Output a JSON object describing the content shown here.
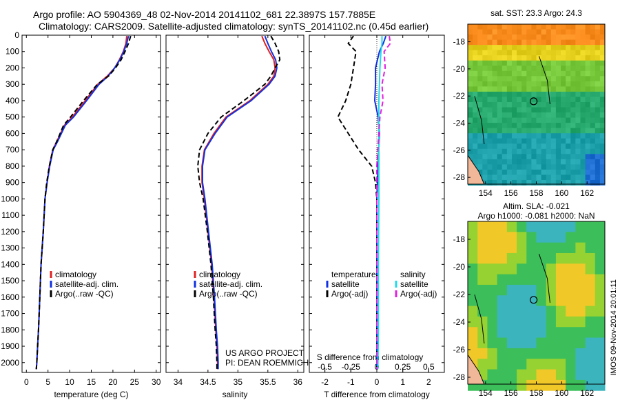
{
  "header": {
    "line1": "Argo profile: AO 5904369_48 02-Nov-2014 20141102_681 22.3897S 157.7885E",
    "line2": "Climatology: CARS2009. Satellite-adjusted climatology: synTS_20141102.nc (0.45d earlier)"
  },
  "colors": {
    "clim": "#e02020",
    "sat": "#1030e0",
    "argo": "#000000",
    "cyan": "#20d8e8",
    "magenta": "#e020e0"
  },
  "chart_data": [
    {
      "type": "line",
      "id": "temperature",
      "xlabel": "temperature (deg C)",
      "xlim": [
        -1,
        31
      ],
      "xticks": [
        "0",
        "5",
        "10",
        "15",
        "20",
        "25",
        "30"
      ],
      "xtick_values": [
        0,
        5,
        10,
        15,
        20,
        25,
        30
      ],
      "ylim": [
        0,
        2060
      ],
      "yticks": [
        "0",
        "100",
        "200",
        "300",
        "400",
        "500",
        "600",
        "700",
        "800",
        "900",
        "1000",
        "1100",
        "1200",
        "1300",
        "1400",
        "1500",
        "1600",
        "1700",
        "1800",
        "1900",
        "2000"
      ],
      "legend": [
        "climatology",
        "satellite-adj. clim.",
        "Argo(..raw -QC)"
      ],
      "series": [
        {
          "name": "climatology",
          "color": "clim",
          "dash": "solid",
          "x": [
            23.2,
            23.0,
            22.4,
            21.5,
            20.4,
            18.7,
            16.5,
            13.6,
            10.6,
            8.8,
            7.0,
            6.1,
            5.3,
            4.8,
            4.3,
            3.9,
            3.4,
            3.1,
            2.8,
            2.6,
            2.4,
            2.3
          ],
          "y": [
            5,
            50,
            100,
            150,
            200,
            250,
            300,
            400,
            500,
            550,
            650,
            700,
            800,
            900,
            1000,
            1200,
            1400,
            1600,
            1800,
            1900,
            2000,
            2040
          ]
        },
        {
          "name": "satellite-adj. clim.",
          "color": "sat",
          "dash": "solid",
          "x": [
            23.6,
            23.2,
            22.5,
            21.6,
            20.4,
            18.9,
            16.8,
            13.9,
            10.9,
            9.0,
            7.2,
            6.2,
            5.4,
            4.8,
            4.3,
            3.9,
            3.4,
            3.1,
            2.8,
            2.6,
            2.4,
            2.3
          ],
          "y": [
            5,
            50,
            100,
            150,
            200,
            250,
            300,
            400,
            500,
            550,
            650,
            700,
            800,
            900,
            1000,
            1200,
            1400,
            1600,
            1800,
            1900,
            2000,
            2040
          ]
        },
        {
          "name": "Argo(..raw -QC)",
          "color": "argo",
          "dash": "dashed",
          "x": [
            24.1,
            23.6,
            22.8,
            21.9,
            20.6,
            19.0,
            16.4,
            13.2,
            10.2,
            8.6,
            7.0,
            6.1,
            5.3,
            4.7,
            4.3,
            3.9,
            3.4,
            3.1,
            2.8,
            2.6,
            2.4,
            2.3
          ],
          "y": [
            5,
            50,
            100,
            150,
            200,
            250,
            300,
            400,
            500,
            550,
            650,
            700,
            800,
            900,
            1000,
            1200,
            1400,
            1600,
            1800,
            1900,
            2000,
            2040
          ]
        }
      ]
    },
    {
      "type": "line",
      "id": "salinity",
      "xlabel": "salinity",
      "xlim": [
        33.8,
        36.1
      ],
      "xticks": [
        "34",
        "34.5",
        "35",
        "35.5",
        "36"
      ],
      "xtick_values": [
        34,
        34.5,
        35,
        35.5,
        36
      ],
      "ylim": [
        0,
        2060
      ],
      "legend": [
        "climatology",
        "satellite-adj. clim.",
        " Argo(..raw -QC)"
      ],
      "annotation": [
        "US ARGO PROJECT",
        "PI: DEAN ROEMMICH"
      ],
      "series": [
        {
          "name": "climatology",
          "color": "clim",
          "dash": "solid",
          "x": [
            35.4,
            35.45,
            35.52,
            35.6,
            35.62,
            35.6,
            35.5,
            35.2,
            34.8,
            34.6,
            34.44,
            34.4,
            34.4,
            34.44,
            34.5,
            34.56,
            34.6,
            34.63,
            34.65,
            34.66,
            34.66
          ],
          "y": [
            5,
            50,
            100,
            150,
            200,
            250,
            300,
            400,
            500,
            600,
            700,
            800,
            900,
            1000,
            1200,
            1400,
            1600,
            1800,
            1900,
            2000,
            2040
          ]
        },
        {
          "name": "satellite-adj. clim.",
          "color": "sat",
          "dash": "solid",
          "x": [
            35.45,
            35.5,
            35.56,
            35.63,
            35.65,
            35.62,
            35.52,
            35.22,
            34.82,
            34.62,
            34.45,
            34.41,
            34.41,
            34.45,
            34.51,
            34.57,
            34.61,
            34.64,
            34.66,
            34.67,
            34.67
          ],
          "y": [
            5,
            50,
            100,
            150,
            200,
            250,
            300,
            400,
            500,
            600,
            700,
            800,
            900,
            1000,
            1200,
            1400,
            1600,
            1800,
            1900,
            2000,
            2040
          ]
        },
        {
          "name": "Argo(..raw -QC)",
          "color": "argo",
          "dash": "dashed",
          "x": [
            35.55,
            35.62,
            35.68,
            35.7,
            35.62,
            35.55,
            35.45,
            35.1,
            34.72,
            34.5,
            34.36,
            34.33,
            34.36,
            34.42,
            34.49,
            34.55,
            34.59,
            34.62,
            34.64,
            34.65,
            34.65
          ],
          "y": [
            5,
            50,
            100,
            150,
            200,
            250,
            300,
            400,
            500,
            600,
            700,
            800,
            900,
            1000,
            1200,
            1400,
            1600,
            1800,
            1900,
            2000,
            2040
          ]
        }
      ]
    },
    {
      "type": "line",
      "id": "difference",
      "xlabel": "T difference from climatology",
      "xlim": [
        -2.6,
        2.6
      ],
      "xticks": [
        "-2",
        "-1",
        "0",
        "1",
        "2"
      ],
      "xtick_values": [
        -2,
        -1,
        0,
        1,
        2
      ],
      "xlabel2": "S difference from climatology",
      "xticks2": [
        "-0.5",
        "-0.25",
        "0",
        "0.25",
        "0.5"
      ],
      "xtick2_values": [
        -0.5,
        -0.25,
        0,
        0.25,
        0.5
      ],
      "x2_scale": 4,
      "ylim": [
        0,
        2060
      ],
      "legend_titles": [
        "temperature",
        "salinity"
      ],
      "legend_left": [
        "satellite",
        "Argo(-adj)"
      ],
      "legend_right": [
        "satellite",
        "Argo(-adj)"
      ],
      "series": [
        {
          "name": "T satellite",
          "color": "sat",
          "dash": "solid",
          "scale": 1,
          "x": [
            0.35,
            0.25,
            0.1,
            -0.05,
            -0.05,
            -0.08,
            0.05,
            0.1,
            0.05,
            0.0,
            0.0,
            0.0,
            0.0
          ],
          "y": [
            5,
            50,
            100,
            200,
            300,
            400,
            500,
            600,
            800,
            1000,
            1400,
            1800,
            2040
          ]
        },
        {
          "name": "T Argo(-adj)",
          "color": "argo",
          "dash": "dashed",
          "scale": 1,
          "x": [
            -0.9,
            -1.1,
            -0.8,
            -0.9,
            -1.0,
            -1.2,
            -1.5,
            -1.1,
            -0.7,
            -0.2,
            -0.05,
            0.0,
            0.0,
            0.0
          ],
          "y": [
            5,
            50,
            100,
            200,
            300,
            400,
            500,
            600,
            700,
            800,
            900,
            1000,
            1400,
            2040
          ]
        },
        {
          "name": "S satellite",
          "color": "cyan",
          "dash": "solid",
          "scale": 4,
          "x": [
            0.05,
            0.05,
            0.04,
            0.03,
            0.02,
            0.02,
            0.02,
            0.02,
            0.015,
            0.015,
            0.01
          ],
          "y": [
            5,
            50,
            100,
            200,
            400,
            600,
            800,
            1000,
            1400,
            1800,
            2040
          ]
        },
        {
          "name": "S Argo(-adj)",
          "color": "magenta",
          "dash": "dashed",
          "scale": 4,
          "x": [
            0.12,
            0.13,
            0.07,
            0.08,
            0.05,
            0.06,
            0.03,
            0.02,
            0.01,
            0.0,
            0.0
          ],
          "y": [
            5,
            50,
            100,
            200,
            300,
            400,
            500,
            600,
            700,
            800,
            2040
          ]
        }
      ]
    },
    {
      "type": "heatmap",
      "id": "sst-map",
      "title": "sat. SST: 23.3 Argo: 24.3",
      "xticks": [
        "154",
        "156",
        "158",
        "160",
        "162"
      ],
      "xtick_values": [
        154,
        156,
        158,
        160,
        162
      ],
      "yticks": [
        "-18",
        "-20",
        "-22",
        "-24",
        "-26",
        "-28"
      ],
      "ytick_values": [
        -18,
        -20,
        -22,
        -24,
        -26,
        -28
      ],
      "xlim": [
        152.6,
        163.4
      ],
      "ylim": [
        -28.5,
        -16.7
      ],
      "marker": {
        "lon": 157.79,
        "lat": -22.39
      }
    },
    {
      "type": "heatmap",
      "id": "sla-map",
      "title": "Altim. SLA: -0.021",
      "subtitle": "Argo h1000: -0.081 h2000: NaN",
      "xticks": [
        "154",
        "156",
        "158",
        "160",
        "162"
      ],
      "xtick_values": [
        154,
        156,
        158,
        160,
        162
      ],
      "yticks": [
        "-18",
        "-20",
        "-22",
        "-24",
        "-26",
        "-28"
      ],
      "ytick_values": [
        -18,
        -20,
        -22,
        -24,
        -26,
        -28
      ],
      "xlim": [
        152.6,
        163.4
      ],
      "ylim": [
        -28.5,
        -16.7
      ],
      "marker": {
        "lon": 157.79,
        "lat": -22.39
      }
    }
  ],
  "stamp": "IMOS 09-Nov-2014 20:01:11"
}
